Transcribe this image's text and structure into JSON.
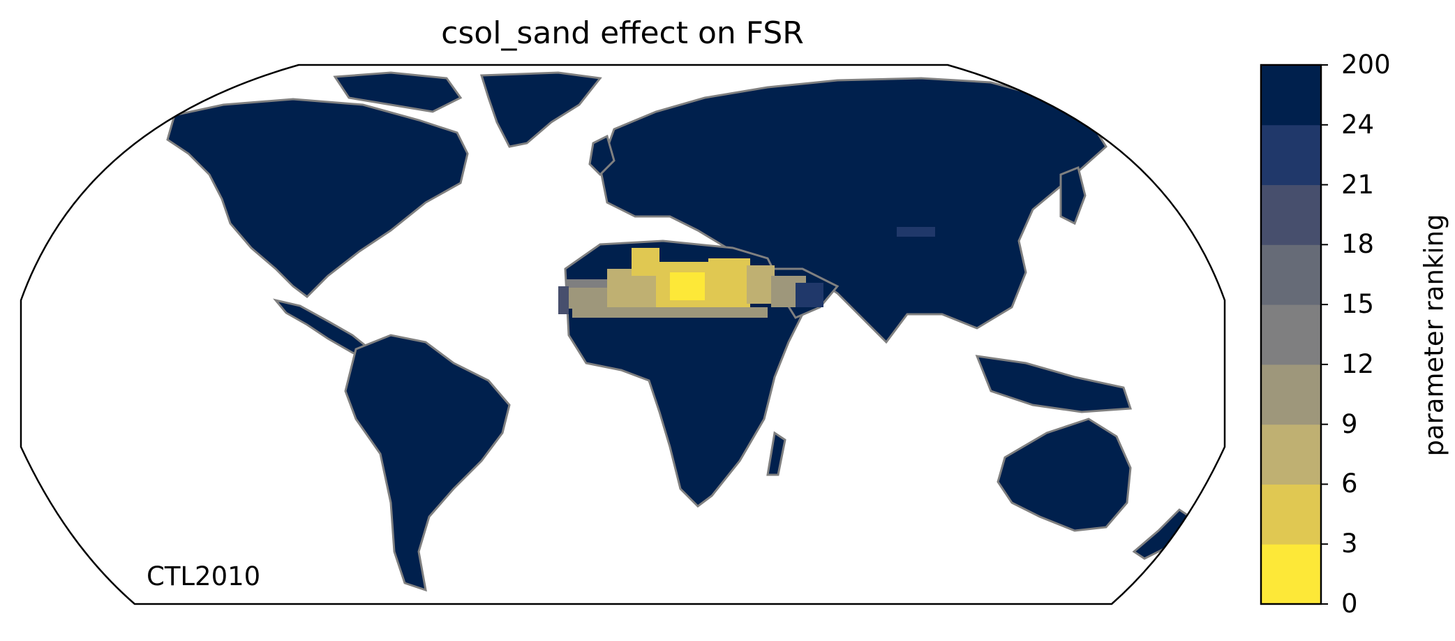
{
  "title": "csol_sand effect on FSR",
  "run_label": "CTL2010",
  "colorbar": {
    "label": "parameter ranking",
    "tick_labels": [
      "0",
      "3",
      "6",
      "9",
      "12",
      "15",
      "18",
      "21",
      "24",
      "200"
    ],
    "colors": [
      "#fde838",
      "#e0c852",
      "#bfb072",
      "#9e977b",
      "#7f7f80",
      "#666b77",
      "#474f6d",
      "#20386a",
      "#00204d"
    ]
  },
  "map": {
    "projection": "Robinson",
    "land_fill": "#00204d",
    "coastline_color": "#808080",
    "dominant_rank_class": "24-200",
    "desert_rank_classes": [
      "0-3",
      "3-6",
      "6-9",
      "9-12"
    ]
  }
}
